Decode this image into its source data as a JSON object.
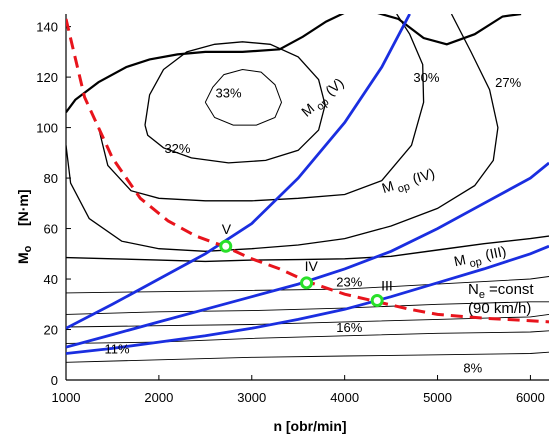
{
  "chart_data": {
    "type": "line",
    "title": "",
    "xlabel": "n   [obr/min]",
    "ylabel_main": "M",
    "ylabel_sub": "o",
    "ylabel_unit": "[N·m]",
    "xlim": [
      1000,
      6200
    ],
    "ylim": [
      0,
      145
    ],
    "x_ticks": [
      1000,
      2000,
      3000,
      4000,
      5000,
      6000
    ],
    "y_ticks": [
      0,
      20,
      40,
      60,
      80,
      100,
      120,
      140
    ],
    "colors": {
      "gear": "#1a2ee0",
      "power": "#e8141c",
      "point": "#29e029",
      "contour": "#000000"
    },
    "contours": [
      {
        "label": "33%",
        "points": [
          [
            2500,
            110
          ],
          [
            2580,
            116
          ],
          [
            2700,
            121
          ],
          [
            2900,
            123
          ],
          [
            3100,
            122
          ],
          [
            3250,
            117
          ],
          [
            3320,
            110
          ],
          [
            3250,
            104
          ],
          [
            3050,
            101
          ],
          [
            2800,
            101
          ],
          [
            2600,
            104
          ],
          [
            2500,
            110
          ]
        ]
      },
      {
        "label": "32%",
        "points": [
          [
            1850,
            101
          ],
          [
            1900,
            113
          ],
          [
            2050,
            123
          ],
          [
            2300,
            130
          ],
          [
            2600,
            133
          ],
          [
            2900,
            134
          ],
          [
            3200,
            133
          ],
          [
            3500,
            128
          ],
          [
            3720,
            119
          ],
          [
            3790,
            109
          ],
          [
            3720,
            99
          ],
          [
            3500,
            91
          ],
          [
            3150,
            87
          ],
          [
            2750,
            86
          ],
          [
            2350,
            88
          ],
          [
            2050,
            92
          ],
          [
            1880,
            97
          ],
          [
            1850,
            101
          ]
        ]
      },
      {
        "label": "30%",
        "points": [
          [
            1350,
            100
          ],
          [
            1450,
            85
          ],
          [
            1700,
            75
          ],
          [
            2000,
            72
          ],
          [
            2500,
            71
          ],
          [
            3000,
            71
          ],
          [
            3500,
            72
          ],
          [
            4000,
            73.5
          ],
          [
            4400,
            79
          ],
          [
            4720,
            93
          ],
          [
            4850,
            110
          ],
          [
            4840,
            125
          ],
          [
            4700,
            137
          ],
          [
            4560,
            145
          ]
        ]
      },
      {
        "label": "27%",
        "points": [
          [
            1000,
            93
          ],
          [
            1050,
            78
          ],
          [
            1250,
            64
          ],
          [
            1600,
            55
          ],
          [
            2000,
            52
          ],
          [
            2500,
            51
          ],
          [
            3000,
            52
          ],
          [
            3500,
            53.5
          ],
          [
            4000,
            56
          ],
          [
            4500,
            61
          ],
          [
            5000,
            68
          ],
          [
            5400,
            77
          ],
          [
            5600,
            87
          ],
          [
            5650,
            100
          ],
          [
            5560,
            115
          ],
          [
            5360,
            130
          ],
          [
            5150,
            145
          ]
        ]
      },
      {
        "label": "23%",
        "points": [
          [
            1000,
            48.5
          ],
          [
            1500,
            48
          ],
          [
            2000,
            47.5
          ],
          [
            2500,
            47
          ],
          [
            3000,
            47.5
          ],
          [
            3500,
            47.7
          ],
          [
            4000,
            48
          ],
          [
            4500,
            49
          ],
          [
            5000,
            51.5
          ],
          [
            5500,
            54
          ],
          [
            6000,
            56
          ],
          [
            6200,
            57
          ]
        ]
      },
      {
        "label": "",
        "points": [
          [
            1000,
            34.5
          ],
          [
            2000,
            35
          ],
          [
            3000,
            35.5
          ],
          [
            4000,
            36
          ],
          [
            5000,
            38
          ],
          [
            6000,
            40
          ],
          [
            6200,
            41
          ]
        ]
      },
      {
        "label": "16%",
        "points": [
          [
            1000,
            26
          ],
          [
            2000,
            27
          ],
          [
            3000,
            27.5
          ],
          [
            4000,
            28.5
          ],
          [
            5000,
            30
          ],
          [
            6000,
            31
          ],
          [
            6200,
            31
          ]
        ]
      },
      {
        "label": "",
        "points": [
          [
            1000,
            21
          ],
          [
            2000,
            21.5
          ],
          [
            3000,
            22
          ],
          [
            4000,
            23
          ],
          [
            5000,
            24
          ],
          [
            6000,
            25
          ],
          [
            6200,
            26
          ]
        ]
      },
      {
        "label": "11%",
        "points": [
          [
            1000,
            14.5
          ],
          [
            2000,
            15
          ],
          [
            3000,
            16.5
          ],
          [
            4000,
            17.5
          ],
          [
            5000,
            18.5
          ],
          [
            6000,
            19
          ],
          [
            6200,
            19.5
          ]
        ]
      },
      {
        "label": "8%",
        "points": [
          [
            1000,
            7
          ],
          [
            2000,
            8
          ],
          [
            3000,
            9
          ],
          [
            4000,
            9.5
          ],
          [
            5000,
            10
          ],
          [
            6000,
            10.5
          ],
          [
            6200,
            11
          ]
        ]
      }
    ],
    "outer_boundary": [
      [
        1000,
        106
      ],
      [
        1100,
        111
      ],
      [
        1350,
        118
      ],
      [
        1650,
        124
      ],
      [
        1900,
        127
      ],
      [
        2200,
        129
      ],
      [
        2500,
        130
      ],
      [
        2900,
        130
      ],
      [
        3300,
        131
      ],
      [
        3550,
        136
      ],
      [
        3800,
        142
      ],
      [
        4000,
        145.5
      ],
      [
        4300,
        146
      ],
      [
        4580,
        143
      ],
      [
        4850,
        135.5
      ],
      [
        5100,
        133
      ],
      [
        5400,
        137
      ],
      [
        5700,
        144
      ],
      [
        5900,
        145
      ]
    ],
    "gear_series": [
      {
        "name": "M op (V)",
        "label": "V",
        "points": [
          [
            1000,
            20.5
          ],
          [
            1500,
            30
          ],
          [
            2000,
            40
          ],
          [
            2500,
            50
          ],
          [
            3000,
            62
          ],
          [
            3500,
            80
          ],
          [
            4000,
            102
          ],
          [
            4400,
            124
          ],
          [
            4700,
            145
          ]
        ]
      },
      {
        "name": "M op (IV)",
        "label": "IV",
        "points": [
          [
            1000,
            13
          ],
          [
            1500,
            18
          ],
          [
            2000,
            23
          ],
          [
            2500,
            28
          ],
          [
            3000,
            33
          ],
          [
            3500,
            38
          ],
          [
            4000,
            44
          ],
          [
            4500,
            51
          ],
          [
            5000,
            60
          ],
          [
            5500,
            70
          ],
          [
            6000,
            80
          ],
          [
            6200,
            86
          ]
        ]
      },
      {
        "name": "M op (III)",
        "label": "III",
        "points": [
          [
            1000,
            10.5
          ],
          [
            1500,
            12.5
          ],
          [
            2000,
            15
          ],
          [
            2500,
            17.5
          ],
          [
            3000,
            20.5
          ],
          [
            3500,
            24
          ],
          [
            4000,
            28
          ],
          [
            4500,
            33
          ],
          [
            5000,
            38.5
          ],
          [
            5500,
            44
          ],
          [
            6000,
            50
          ],
          [
            6200,
            53
          ]
        ]
      }
    ],
    "power_curve": {
      "label_main": "N",
      "label_sub": "e",
      "label_rest": "=const",
      "label_speed": "(90 km/h)",
      "points": [
        [
          1000,
          143
        ],
        [
          1200,
          112
        ],
        [
          1500,
          88
        ],
        [
          1800,
          72
        ],
        [
          2100,
          63
        ],
        [
          2400,
          57
        ],
        [
          2700,
          53
        ],
        [
          3000,
          48
        ],
        [
          3300,
          44
        ],
        [
          3600,
          39
        ],
        [
          4000,
          34
        ],
        [
          4350,
          31
        ],
        [
          4700,
          28
        ],
        [
          5000,
          26
        ],
        [
          5500,
          24.5
        ],
        [
          6000,
          23.5
        ],
        [
          6200,
          23
        ]
      ]
    },
    "intersections": [
      {
        "label": "V",
        "x": 2720,
        "y": 53
      },
      {
        "label": "IV",
        "x": 3590,
        "y": 38.5
      },
      {
        "label": "III",
        "x": 4350,
        "y": 31.5
      }
    ]
  }
}
